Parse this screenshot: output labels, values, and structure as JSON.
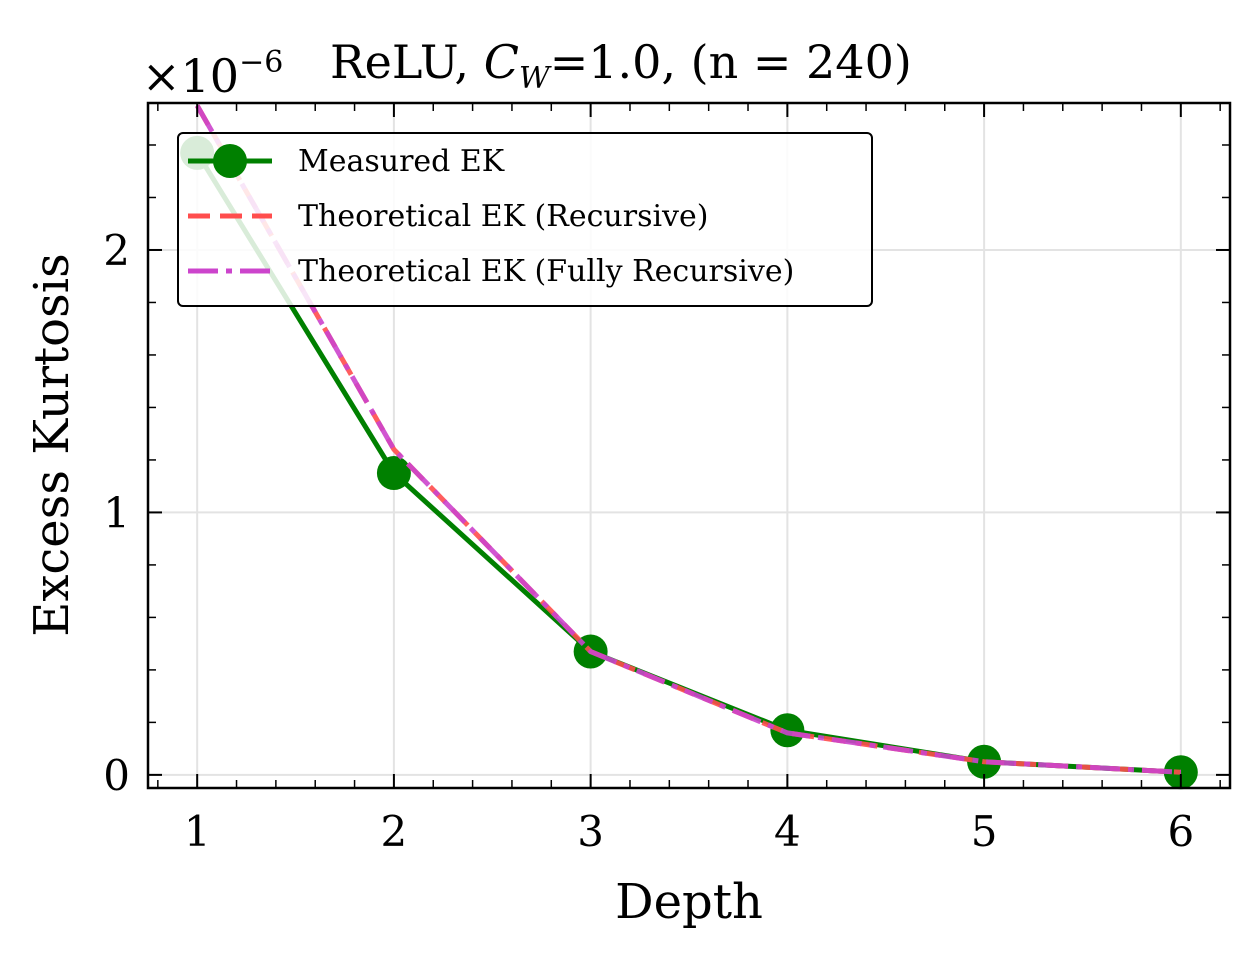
{
  "chart_data": {
    "type": "line",
    "title_parts": {
      "prefix": "ReLU, ",
      "cw_symbol": "C",
      "cw_subscript": "W",
      "suffix": "=1.0, (n = 240)"
    },
    "multiplier": {
      "base": "×10",
      "exponent": "−6"
    },
    "xlabel": "Depth",
    "ylabel": "Excess Kurtosis",
    "x": [
      1,
      2,
      3,
      4,
      5,
      6
    ],
    "xlim": [
      0.75,
      6.25
    ],
    "ylim": [
      -0.05,
      2.56
    ],
    "xticks": [
      1,
      2,
      3,
      4,
      5,
      6
    ],
    "xtick_labels": [
      "1",
      "2",
      "3",
      "4",
      "5",
      "6"
    ],
    "yticks": [
      0,
      1,
      2
    ],
    "ytick_labels": [
      "0",
      "1",
      "2"
    ],
    "grid": true,
    "legend_position": "upper-left",
    "series": [
      {
        "name": "Measured EK",
        "values": [
          2.37,
          1.15,
          0.47,
          0.17,
          0.05,
          0.01
        ],
        "color": "#008000",
        "style": "solid-marker"
      },
      {
        "name": "Theoretical EK (Recursive)",
        "values": [
          2.55,
          1.24,
          0.47,
          0.16,
          0.05,
          0.01
        ],
        "color": "#ff4d4d",
        "style": "dashed"
      },
      {
        "name": "Theoretical EK (Fully Recursive)",
        "values": [
          2.55,
          1.24,
          0.47,
          0.16,
          0.05,
          0.01
        ],
        "color": "#cc44cc",
        "style": "dashdot"
      }
    ]
  }
}
